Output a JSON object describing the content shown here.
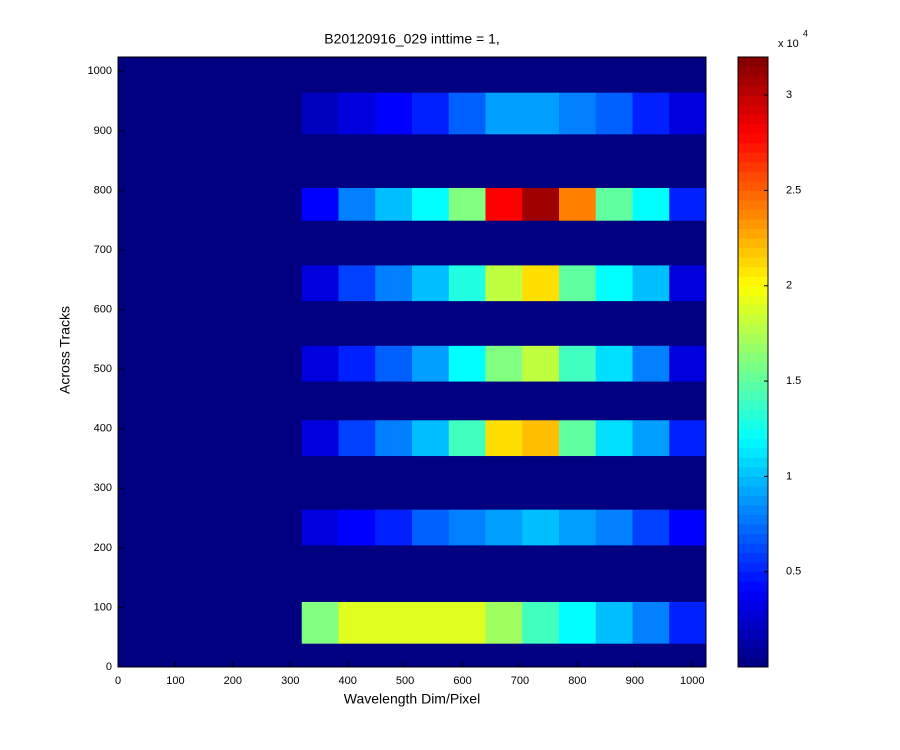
{
  "chart_data": {
    "type": "heatmap",
    "title": "B20120916_029 inttime = 1,",
    "x_label": "Wavelength Dim/Pixel",
    "y_label": "Across Tracks",
    "xlim": [
      0,
      1024
    ],
    "ylim": [
      0,
      1024
    ],
    "xticks": [
      0,
      100,
      200,
      300,
      400,
      500,
      600,
      700,
      800,
      900,
      1000
    ],
    "yticks": [
      0,
      100,
      200,
      300,
      400,
      500,
      600,
      700,
      800,
      900,
      1000
    ],
    "x_edges": [
      0,
      64,
      128,
      192,
      256,
      320,
      384,
      448,
      512,
      576,
      640,
      704,
      768,
      832,
      896,
      960,
      1024
    ],
    "y_edges": [
      0,
      40,
      110,
      205,
      265,
      355,
      415,
      480,
      540,
      615,
      675,
      750,
      805,
      895,
      965,
      1024
    ],
    "values": [
      [
        0,
        0,
        0,
        0,
        0,
        0,
        0,
        0,
        0,
        0,
        0,
        0,
        0,
        0,
        0,
        0
      ],
      [
        0,
        0,
        0,
        0,
        0,
        16000,
        19000,
        19000,
        19000,
        19000,
        17000,
        14000,
        12000,
        10000,
        8000,
        5000
      ],
      [
        0,
        0,
        0,
        0,
        0,
        0,
        0,
        0,
        0,
        0,
        0,
        0,
        0,
        0,
        0,
        0
      ],
      [
        0,
        0,
        0,
        0,
        0,
        3000,
        4000,
        5000,
        7000,
        8000,
        9000,
        10000,
        9000,
        8000,
        6000,
        4000
      ],
      [
        0,
        0,
        0,
        0,
        0,
        0,
        0,
        0,
        0,
        0,
        0,
        0,
        0,
        0,
        0,
        0
      ],
      [
        0,
        0,
        0,
        0,
        0,
        3000,
        6000,
        8000,
        10000,
        14000,
        21000,
        22000,
        15000,
        11000,
        9000,
        5000
      ],
      [
        0,
        0,
        0,
        0,
        0,
        0,
        0,
        0,
        0,
        0,
        0,
        0,
        0,
        0,
        0,
        0
      ],
      [
        0,
        0,
        0,
        0,
        0,
        3000,
        5000,
        7000,
        9000,
        12000,
        16000,
        18000,
        14000,
        11000,
        8000,
        3000
      ],
      [
        0,
        0,
        0,
        0,
        0,
        0,
        0,
        0,
        0,
        0,
        0,
        0,
        0,
        0,
        0,
        0
      ],
      [
        0,
        0,
        0,
        0,
        0,
        3000,
        6000,
        8000,
        10000,
        13000,
        18000,
        21000,
        15000,
        12000,
        10000,
        3000
      ],
      [
        0,
        0,
        0,
        0,
        0,
        0,
        0,
        0,
        0,
        0,
        0,
        0,
        0,
        0,
        0,
        0
      ],
      [
        0,
        0,
        0,
        0,
        0,
        4000,
        8000,
        10000,
        12000,
        16000,
        28000,
        31000,
        24000,
        15000,
        12000,
        5000
      ],
      [
        0,
        0,
        0,
        0,
        0,
        0,
        0,
        0,
        0,
        0,
        0,
        0,
        0,
        0,
        0,
        0
      ],
      [
        0,
        0,
        0,
        0,
        0,
        2000,
        3000,
        4000,
        5000,
        7000,
        9000,
        9000,
        8000,
        7000,
        5000,
        3000
      ],
      [
        0,
        0,
        0,
        0,
        0,
        0,
        0,
        0,
        0,
        0,
        0,
        0,
        0,
        0,
        0,
        0
      ]
    ],
    "colormap": "jet",
    "clim": [
      0,
      32000
    ],
    "cticks": [
      {
        "value": 5000,
        "label": "0.5"
      },
      {
        "value": 10000,
        "label": "1"
      },
      {
        "value": 15000,
        "label": "1.5"
      },
      {
        "value": 20000,
        "label": "2"
      },
      {
        "value": 25000,
        "label": "2.5"
      },
      {
        "value": 30000,
        "label": "3"
      }
    ],
    "colorbar_multiplier": "x 10",
    "colorbar_exponent": "4"
  }
}
